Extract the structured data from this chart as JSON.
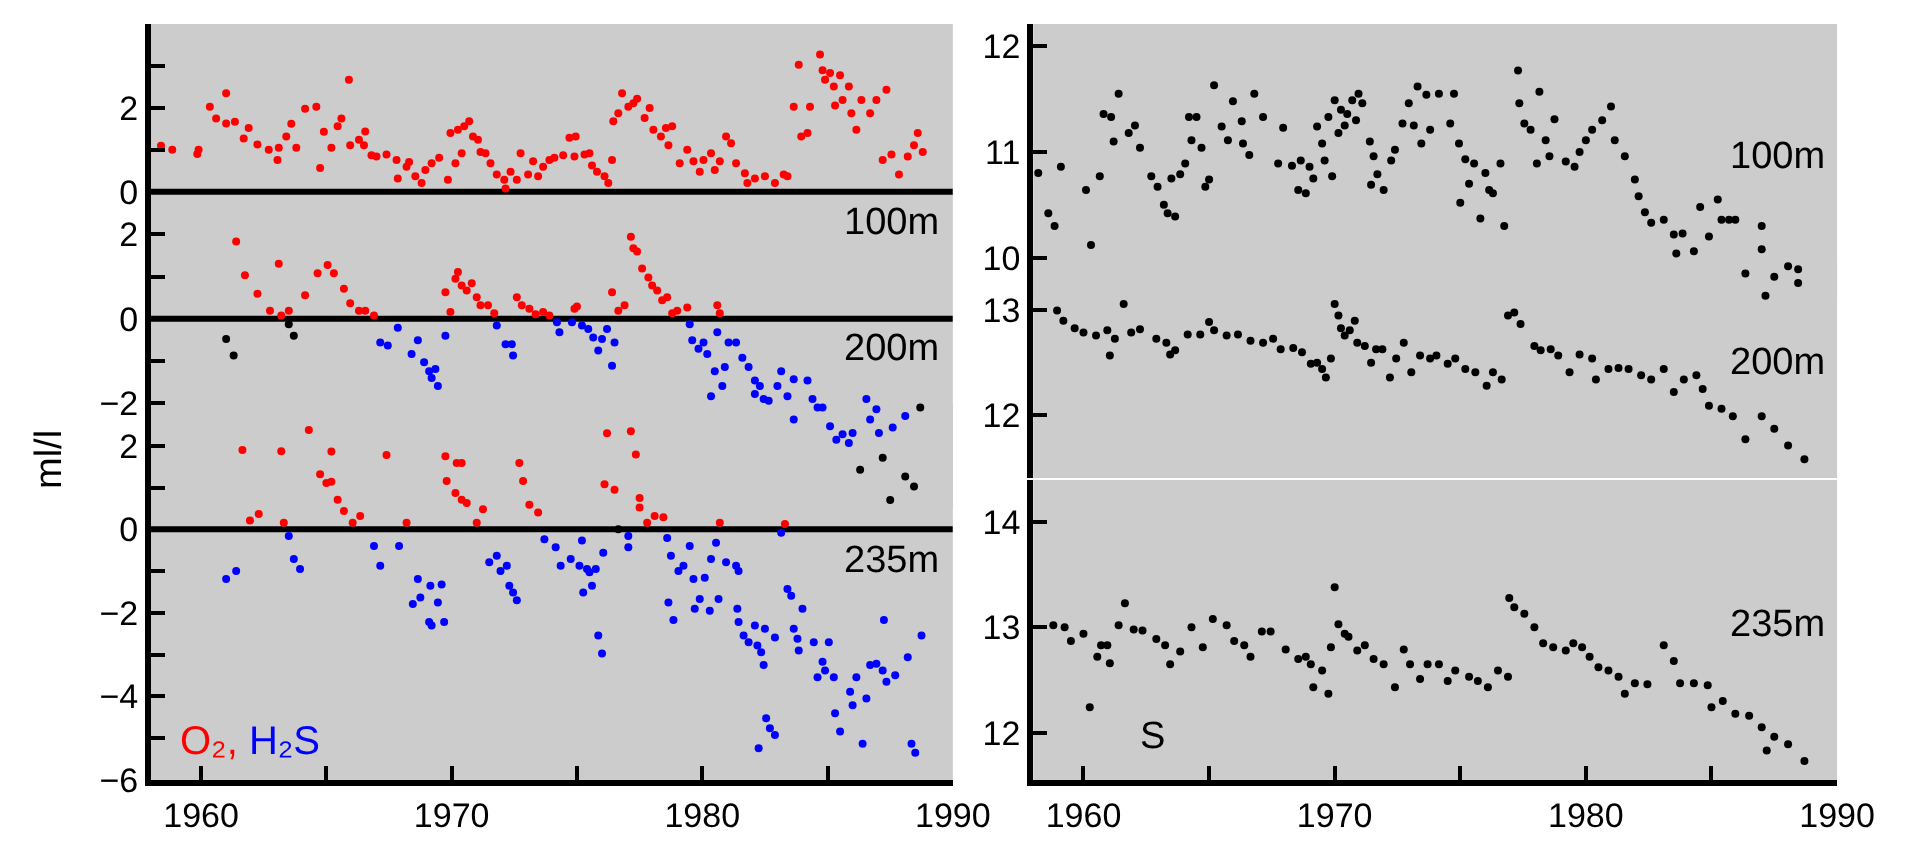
{
  "chart_data": [
    {
      "type": "scatter",
      "xlim": [
        1958,
        1990
      ],
      "ylim": [
        -0.1,
        4
      ],
      "yticks": [
        0,
        {
          "value": 1,
          "label": null
        },
        2,
        {
          "value": 3,
          "label": null
        },
        {
          "value": 4,
          "label": null
        }
      ],
      "tick_labels": "y",
      "marker": "circle",
      "ref_lines": [
        {
          "axis": "y",
          "value": 0,
          "color": "#000000"
        }
      ],
      "annotations": [
        "100m"
      ],
      "series": [
        {
          "color": "#ff0000",
          "x": [
            1958.4,
            1958.85,
            1959.85,
            1959.9,
            1960.35,
            1960.6,
            1961.0,
            1961.0,
            1961.35,
            1961.7,
            1961.9,
            1962.25,
            1962.7,
            1963.05,
            1963.1,
            1963.4,
            1963.6,
            1963.8,
            1964.15,
            1964.6,
            1964.75,
            1964.9,
            1965.2,
            1965.45,
            1965.6,
            1965.9,
            1965.95,
            1966.3,
            1966.55,
            1966.5,
            1966.8,
            1967.0,
            1967.4,
            1967.8,
            1967.85,
            1968.2,
            1968.3,
            1968.55,
            1968.8,
            1968.95,
            1969.2,
            1969.5,
            1969.85,
            1969.95,
            1970.15,
            1970.25,
            1970.4,
            1970.5,
            1970.7,
            1970.85,
            1971.05,
            1971.15,
            1971.35,
            1971.55,
            1971.8,
            1972.1,
            1972.15,
            1972.35,
            1972.6,
            1972.75,
            1973.05,
            1973.25,
            1973.45,
            1973.65,
            1973.9,
            1974.1,
            1974.45,
            1974.7,
            1974.95,
            1974.9,
            1975.3,
            1975.5,
            1975.6,
            1975.8,
            1976.1,
            1976.25,
            1976.4,
            1976.45,
            1976.65,
            1976.8,
            1977.05,
            1977.25,
            1977.4,
            1977.7,
            1977.9,
            1978.05,
            1978.35,
            1978.55,
            1978.65,
            1978.8,
            1979.1,
            1979.4,
            1979.65,
            1979.9,
            1980.05,
            1980.35,
            1980.5,
            1980.7,
            1980.95,
            1981.15,
            1981.35,
            1981.7,
            1981.8,
            1982.1,
            1982.5,
            1982.9,
            1983.25,
            1983.4,
            1983.65,
            1983.85,
            1983.95,
            1984.2,
            1984.3,
            1984.7,
            1984.8,
            1984.9,
            1985.1,
            1985.25,
            1985.3,
            1985.5,
            1985.6,
            1985.85,
            1985.95,
            1986.15,
            1986.35,
            1986.7,
            1986.95,
            1987.35,
            1987.2,
            1987.55,
            1987.85,
            1988.2,
            1988.45,
            1988.6,
            1988.8
          ],
          "values": [
            1.1,
            1.0,
            0.9,
            1.0,
            2.03,
            1.75,
            2.35,
            1.63,
            1.67,
            1.27,
            1.52,
            1.13,
            1.0,
            0.76,
            1.05,
            1.32,
            1.62,
            1.05,
            1.98,
            2.03,
            0.57,
            1.43,
            1.05,
            1.56,
            1.75,
            2.67,
            1.11,
            1.24,
            1.44,
            1.11,
            0.87,
            0.84,
            0.89,
            0.76,
            0.32,
            0.6,
            0.71,
            0.37,
            0.21,
            0.52,
            0.68,
            0.81,
            0.29,
            1.4,
            0.68,
            1.48,
            0.92,
            1.56,
            1.68,
            1.32,
            1.24,
            0.95,
            0.92,
            0.68,
            0.41,
            0.29,
            0.08,
            0.48,
            0.29,
            0.92,
            0.41,
            0.73,
            0.37,
            0.6,
            0.76,
            0.81,
            0.87,
            1.29,
            1.32,
            0.84,
            0.89,
            0.92,
            0.63,
            0.48,
            0.37,
            0.21,
            0.76,
            1.68,
            1.87,
            2.35,
            2.03,
            2.11,
            2.22,
            1.76,
            2.0,
            1.48,
            1.32,
            1.52,
            1.11,
            1.56,
            0.68,
            1.0,
            0.73,
            0.48,
            0.76,
            0.92,
            0.52,
            0.73,
            1.32,
            1.16,
            0.68,
            0.44,
            0.21,
            0.32,
            0.37,
            0.21,
            0.41,
            0.37,
            2.03,
            3.03,
            1.32,
            1.4,
            2.03,
            3.27,
            2.9,
            2.67,
            2.83,
            2.51,
            2.06,
            2.78,
            2.19,
            2.51,
            1.87,
            1.48,
            2.19,
            1.87,
            2.19,
            2.43,
            0.76,
            0.89,
            0.41,
            0.84,
            1.11,
            1.4,
            0.95
          ]
        }
      ]
    },
    {
      "type": "scatter",
      "xlim": [
        1958,
        1990
      ],
      "ylim": [
        -4.5,
        3
      ],
      "yticks": [
        {
          "value": -2,
          "label": "−2"
        },
        {
          "value": -1,
          "label": null
        },
        0,
        {
          "value": 1,
          "label": null
        },
        2
      ],
      "tick_labels": "y",
      "marker": "circle",
      "ylabel": "ml/l",
      "ref_lines": [
        {
          "axis": "y",
          "value": 0,
          "color": "#000000"
        }
      ],
      "annotations": [
        "200m"
      ],
      "series": [
        {
          "color": "#ff0000",
          "x": [
            1961.4,
            1961.75,
            1962.25,
            1962.75,
            1963.1,
            1963.2,
            1963.5,
            1964.15,
            1964.65,
            1965.05,
            1965.3,
            1965.7,
            1965.95,
            1966.3,
            1966.55,
            1966.9,
            1969.75,
            1969.95,
            1970.15,
            1970.25,
            1970.4,
            1970.6,
            1970.8,
            1971.0,
            1971.15,
            1971.45,
            1971.7,
            1972.6,
            1972.8,
            1973.1,
            1973.35,
            1973.65,
            1973.9,
            1974.9,
            1975.0,
            1976.4,
            1976.65,
            1976.9,
            1977.15,
            1977.25,
            1977.4,
            1977.6,
            1977.85,
            1978.0,
            1978.2,
            1978.4,
            1978.6,
            1978.8,
            1979.0,
            1979.4,
            1980.6,
            1980.7
          ],
          "values": [
            1.83,
            1.03,
            0.59,
            0.19,
            1.3,
            0.08,
            0.19,
            0.56,
            1.08,
            1.27,
            1.08,
            0.71,
            0.37,
            0.19,
            0.19,
            0.08,
            0.63,
            0.16,
            0.95,
            1.11,
            0.79,
            0.67,
            0.84,
            0.51,
            0.32,
            0.32,
            0.13,
            0.51,
            0.32,
            0.24,
            0.11,
            0.16,
            0.08,
            0.24,
            0.29,
            0.63,
            0.19,
            0.32,
            1.94,
            1.67,
            1.59,
            1.19,
            0.98,
            0.79,
            0.67,
            0.44,
            0.51,
            0.13,
            0.19,
            0.27,
            0.32,
            0.13
          ]
        },
        {
          "color": "#0000ff",
          "x": [
            1967.15,
            1967.45,
            1967.85,
            1968.4,
            1968.65,
            1968.9,
            1969.1,
            1969.2,
            1969.45,
            1969.35,
            1969.75,
            1971.8,
            1972.15,
            1972.45,
            1972.4,
            1974.2,
            1974.3,
            1974.8,
            1975.2,
            1975.45,
            1975.65,
            1975.85,
            1976.0,
            1976.2,
            1976.4,
            1976.5,
            1979.5,
            1979.6,
            1979.85,
            1980.05,
            1980.2,
            1980.35,
            1980.5,
            1980.6,
            1980.8,
            1980.9,
            1981.05,
            1981.35,
            1981.6,
            1981.85,
            1982.1,
            1982.1,
            1982.3,
            1982.45,
            1982.65,
            1983.0,
            1983.15,
            1983.4,
            1983.65,
            1983.65,
            1984.2,
            1984.4,
            1984.6,
            1984.8,
            1985.1,
            1985.35,
            1985.6,
            1985.85,
            1986.0,
            1986.55,
            1986.7,
            1986.95,
            1987.05,
            1987.6,
            1988.1
          ],
          "values": [
            -0.56,
            -0.63,
            -0.21,
            -0.83,
            -0.51,
            -1.03,
            -1.24,
            -1.4,
            -1.59,
            -1.19,
            -0.4,
            -0.16,
            -0.6,
            -0.87,
            -0.6,
            -0.08,
            -0.32,
            -0.08,
            -0.16,
            -0.24,
            -0.44,
            -0.75,
            -0.48,
            -0.24,
            -1.11,
            -0.56,
            -0.13,
            -0.51,
            -0.71,
            -0.56,
            -0.83,
            -1.83,
            -1.24,
            -0.32,
            -1.59,
            -1.14,
            -0.56,
            -0.56,
            -0.92,
            -1.14,
            -1.78,
            -1.46,
            -1.59,
            -1.9,
            -1.94,
            -1.59,
            -1.24,
            -1.83,
            -2.38,
            -1.43,
            -1.46,
            -1.9,
            -2.1,
            -2.1,
            -2.54,
            -2.86,
            -2.73,
            -2.94,
            -2.7,
            -1.9,
            -2.38,
            -2.14,
            -2.7,
            -2.57,
            -2.3
          ]
        },
        {
          "color": "#000000",
          "x": [
            1961.0,
            1961.3,
            1963.5,
            1963.7,
            1986.3,
            1987.2,
            1987.5,
            1988.1,
            1988.45,
            1988.7
          ],
          "values": [
            -0.48,
            -0.87,
            -0.13,
            -0.4,
            -3.57,
            -3.29,
            -4.29,
            -3.73,
            -3.97,
            -2.1
          ]
        }
      ]
    },
    {
      "type": "scatter",
      "xlim": [
        1958,
        1990
      ],
      "xticks": [
        1960,
        {
          "value": 1965,
          "label": null
        },
        1970,
        {
          "value": 1975,
          "label": null
        },
        1980,
        {
          "value": 1985,
          "label": null
        },
        1990
      ],
      "ylim": [
        -6,
        3
      ],
      "yticks": [
        {
          "value": -6,
          "label": "−6"
        },
        {
          "value": -5,
          "label": null
        },
        {
          "value": -4,
          "label": "−4"
        },
        {
          "value": -3,
          "label": null
        },
        {
          "value": -2,
          "label": "−2"
        },
        {
          "value": -1,
          "label": null
        },
        0,
        {
          "value": 1,
          "label": null
        },
        2
      ],
      "marker": "circle",
      "legend": "bottom left",
      "ref_lines": [
        {
          "axis": "y",
          "value": 0,
          "color": "#000000"
        }
      ],
      "annotations": [
        "235m"
      ],
      "series": [
        {
          "name": "O₂,",
          "color": "#ff0000",
          "x": [
            1961.65,
            1961.95,
            1962.3,
            1963.2,
            1963.3,
            1964.3,
            1964.75,
            1965.0,
            1965.2,
            1965.2,
            1965.45,
            1965.7,
            1966.05,
            1966.35,
            1967.4,
            1968.2,
            1969.75,
            1969.8,
            1970.15,
            1970.2,
            1970.4,
            1970.4,
            1970.6,
            1971.0,
            1971.25,
            1972.7,
            1972.85,
            1973.1,
            1973.45,
            1976.2,
            1976.1,
            1976.5,
            1977.15,
            1977.35,
            1977.5,
            1977.5,
            1977.8,
            1978.1,
            1978.45,
            1980.7,
            1983.3
          ],
          "values": [
            1.9,
            0.21,
            0.37,
            1.87,
            0.16,
            2.38,
            1.32,
            1.11,
            1.86,
            1.14,
            0.71,
            0.44,
            0.16,
            0.32,
            1.78,
            0.16,
            1.75,
            1.16,
            0.87,
            1.59,
            1.59,
            0.71,
            0.63,
            0.16,
            0.48,
            1.59,
            1.16,
            0.59,
            0.4,
            2.3,
            1.08,
            0.95,
            2.35,
            1.79,
            0.75,
            0.52,
            0.16,
            0.32,
            0.29,
            0.16,
            0.13
          ]
        },
        {
          "name": "H₂S",
          "color": "#0000ff",
          "x": [
            1961.0,
            1961.4,
            1963.5,
            1963.7,
            1963.95,
            1966.9,
            1967.15,
            1967.9,
            1968.45,
            1968.65,
            1968.75,
            1969.1,
            1969.2,
            1969.15,
            1969.45,
            1969.6,
            1969.7,
            1971.5,
            1971.8,
            1971.95,
            1972.2,
            1972.3,
            1972.45,
            1972.6,
            1973.7,
            1974.15,
            1974.35,
            1974.75,
            1975.1,
            1975.2,
            1975.25,
            1975.4,
            1975.5,
            1975.6,
            1975.75,
            1975.85,
            1976.0,
            1976.05,
            1977.05,
            1977.05,
            1978.6,
            1978.75,
            1978.65,
            1978.85,
            1979.05,
            1979.25,
            1979.5,
            1979.65,
            1979.7,
            1979.9,
            1980.1,
            1980.3,
            1980.35,
            1980.55,
            1980.65,
            1980.95,
            1981.35,
            1981.4,
            1981.45,
            1981.45,
            1981.65,
            1981.85,
            1982.1,
            1982.2,
            1982.25,
            1982.35,
            1982.45,
            1982.5,
            1982.55,
            1982.7,
            1982.9,
            1982.9,
            1983.15,
            1983.4,
            1983.55,
            1983.65,
            1983.8,
            1983.85,
            1984.0,
            1984.45,
            1984.6,
            1984.8,
            1984.9,
            1985.05,
            1985.25,
            1985.3,
            1985.5,
            1985.9,
            1986.0,
            1986.15,
            1986.4,
            1986.55,
            1986.7,
            1986.95,
            1987.2,
            1987.25,
            1987.35,
            1987.7,
            1988.2,
            1988.35,
            1988.5,
            1988.75
          ],
          "values": [
            -1.19,
            -1.0,
            -0.16,
            -0.71,
            -0.95,
            -0.4,
            -0.87,
            -0.4,
            -1.79,
            -1.19,
            -1.63,
            -2.22,
            -2.3,
            -1.35,
            -1.75,
            -1.32,
            -2.22,
            -0.79,
            -0.63,
            -1.0,
            -0.87,
            -1.35,
            -1.51,
            -1.7,
            -0.24,
            -0.43,
            -0.87,
            -0.71,
            -0.87,
            -0.27,
            -1.51,
            -0.95,
            -1.03,
            -1.35,
            -0.95,
            -2.54,
            -2.97,
            -0.56,
            -0.16,
            -0.43,
            -0.21,
            -0.63,
            -1.75,
            -2.17,
            -1.0,
            -0.87,
            -0.4,
            -1.19,
            -1.9,
            -1.67,
            -1.16,
            -1.95,
            -0.71,
            -0.32,
            -1.67,
            -0.79,
            -0.87,
            -1.9,
            -1.0,
            -2.22,
            -2.54,
            -2.7,
            -2.3,
            -2.78,
            -5.24,
            -2.94,
            -3.25,
            -2.38,
            -4.52,
            -4.76,
            -4.92,
            -2.59,
            -0.08,
            -1.43,
            -1.59,
            -2.38,
            -2.62,
            -2.9,
            -1.9,
            -2.7,
            -3.54,
            -3.17,
            -3.38,
            -2.7,
            -3.54,
            -4.4,
            -4.84,
            -3.89,
            -4.21,
            -3.54,
            -5.13,
            -4.05,
            -3.25,
            -3.22,
            -3.38,
            -2.17,
            -3.65,
            -3.49,
            -3.06,
            -5.13,
            -5.35,
            -2.54
          ]
        },
        {
          "color": "#000000",
          "x": [
            1976.65
          ],
          "values": [
            0.0
          ]
        }
      ]
    },
    {
      "type": "scatter",
      "xlim": [
        1958,
        1990
      ],
      "ylim": [
        9.6,
        12.21
      ],
      "yticks": [
        10,
        11,
        12
      ],
      "tick_labels": "y",
      "marker": "circle",
      "annotations": [
        "100m"
      ],
      "series": [
        {
          "color": "#000000",
          "x": [
            1958.2,
            1958.6,
            1958.85,
            1959.1,
            1960.1,
            1960.3,
            1960.65,
            1960.8,
            1961.1,
            1961.2,
            1961.4,
            1961.8,
            1962.05,
            1962.25,
            1962.7,
            1962.95,
            1963.2,
            1963.35,
            1963.65,
            1963.5,
            1963.85,
            1964.05,
            1964.2,
            1964.3,
            1964.5,
            1964.7,
            1964.85,
            1965.0,
            1965.2,
            1965.5,
            1965.75,
            1965.95,
            1966.3,
            1966.35,
            1966.6,
            1966.8,
            1967.15,
            1967.75,
            1967.95,
            1968.3,
            1968.55,
            1968.65,
            1968.85,
            1969.0,
            1969.15,
            1969.3,
            1969.5,
            1969.6,
            1969.75,
            1969.9,
            1970.0,
            1970.15,
            1970.25,
            1970.4,
            1970.5,
            1970.7,
            1970.85,
            1970.95,
            1971.1,
            1971.4,
            1971.55,
            1971.45,
            1971.7,
            1971.95,
            1972.25,
            1972.4,
            1972.7,
            1972.95,
            1973.15,
            1973.3,
            1973.45,
            1973.65,
            1973.8,
            1974.15,
            1974.6,
            1974.75,
            1974.95,
            1975.0,
            1975.2,
            1975.35,
            1975.55,
            1975.8,
            1976.0,
            1976.15,
            1976.3,
            1976.6,
            1976.75,
            1977.3,
            1977.35,
            1977.55,
            1977.8,
            1978.15,
            1978.05,
            1978.4,
            1978.55,
            1978.75,
            1979.2,
            1979.55,
            1979.75,
            1980.0,
            1980.25,
            1980.65,
            1981.0,
            1981.15,
            1981.55,
            1981.95,
            1982.1,
            1982.35,
            1982.6,
            1983.1,
            1983.5,
            1983.85,
            1984.3,
            1984.55,
            1984.9,
            1985.25,
            1985.4,
            1985.7,
            1985.95,
            1987.0,
            1987.0,
            1983.6,
            1986.35,
            1987.15,
            1987.5,
            1988.05,
            1988.45,
            1988.45
          ],
          "values": [
            10.8,
            10.42,
            10.3,
            10.86,
            10.64,
            10.12,
            10.77,
            11.36,
            11.33,
            11.1,
            11.55,
            11.18,
            11.25,
            11.04,
            10.77,
            10.67,
            10.5,
            10.42,
            10.39,
            10.75,
            10.79,
            10.89,
            11.33,
            11.11,
            11.33,
            11.04,
            10.67,
            10.74,
            11.63,
            11.24,
            11.11,
            11.48,
            11.29,
            11.08,
            10.97,
            11.55,
            11.33,
            10.89,
            11.23,
            10.87,
            10.64,
            10.92,
            10.61,
            10.86,
            10.75,
            11.24,
            11.08,
            10.92,
            11.33,
            10.77,
            11.49,
            11.18,
            11.4,
            11.25,
            11.36,
            11.49,
            11.3,
            11.55,
            11.46,
            11.1,
            10.96,
            10.69,
            10.79,
            10.64,
            10.92,
            11.02,
            11.27,
            11.46,
            11.25,
            11.62,
            11.08,
            11.54,
            11.21,
            11.55,
            11.27,
            11.55,
            11.08,
            10.52,
            10.93,
            10.7,
            10.89,
            10.37,
            10.8,
            10.64,
            10.61,
            10.89,
            10.3,
            11.77,
            11.46,
            11.27,
            11.21,
            11.57,
            10.89,
            11.11,
            10.96,
            11.31,
            10.91,
            10.86,
            11.0,
            11.11,
            11.21,
            11.3,
            11.43,
            11.11,
            10.96,
            10.74,
            10.58,
            10.43,
            10.33,
            10.36,
            10.22,
            10.23,
            10.06,
            10.48,
            10.2,
            10.55,
            10.36,
            10.36,
            10.36,
            10.3,
            10.08,
            10.04,
            9.85,
            9.64,
            9.82,
            9.92,
            9.76,
            9.89
          ]
        }
      ]
    },
    {
      "type": "scatter",
      "xlim": [
        1958,
        1990
      ],
      "ylim": [
        11.4,
        13.5
      ],
      "yticks": [
        12,
        13
      ],
      "tick_labels": "y",
      "marker": "circle",
      "annotations": [
        "200m"
      ],
      "series": [
        {
          "color": "#000000",
          "x": [
            1958.95,
            1959.2,
            1959.65,
            1960.0,
            1960.5,
            1960.95,
            1961.05,
            1961.25,
            1961.6,
            1961.9,
            1962.25,
            1962.9,
            1963.3,
            1963.45,
            1963.65,
            1964.15,
            1964.65,
            1965.0,
            1965.2,
            1965.7,
            1966.15,
            1966.65,
            1967.15,
            1967.55,
            1967.85,
            1968.35,
            1968.7,
            1969.05,
            1969.3,
            1969.5,
            1969.65,
            1969.85,
            1970.0,
            1970.15,
            1970.25,
            1970.4,
            1970.6,
            1970.8,
            1970.9,
            1971.2,
            1971.45,
            1971.65,
            1971.9,
            1972.2,
            1972.45,
            1972.75,
            1973.05,
            1973.4,
            1973.8,
            1974.05,
            1974.5,
            1974.8,
            1975.2,
            1975.6,
            1976.05,
            1976.3,
            1976.65,
            1976.9,
            1977.15,
            1977.4,
            1977.95,
            1978.2,
            1978.6,
            1978.9,
            1979.35,
            1979.75,
            1980.25,
            1980.4,
            1980.9,
            1981.3,
            1981.7,
            1982.2,
            1982.6,
            1983.1,
            1983.5,
            1983.9,
            1984.4,
            1984.65,
            1984.9,
            1985.4,
            1985.85,
            1986.35,
            1987.0,
            1987.5,
            1988.05,
            1988.7
          ],
          "values": [
            13.0,
            12.9,
            12.83,
            12.79,
            12.76,
            12.81,
            12.57,
            12.73,
            13.06,
            12.79,
            12.82,
            12.73,
            12.69,
            12.58,
            12.62,
            12.77,
            12.77,
            12.89,
            12.81,
            12.76,
            12.77,
            12.71,
            12.69,
            12.73,
            12.63,
            12.64,
            12.6,
            12.49,
            12.5,
            12.44,
            12.36,
            12.54,
            13.06,
            12.95,
            12.83,
            12.76,
            12.81,
            12.9,
            12.69,
            12.66,
            12.5,
            12.63,
            12.63,
            12.36,
            12.54,
            12.69,
            12.41,
            12.57,
            12.54,
            12.57,
            12.49,
            12.54,
            12.44,
            12.41,
            12.28,
            12.41,
            12.34,
            12.95,
            12.98,
            12.87,
            12.66,
            12.62,
            12.63,
            12.57,
            12.41,
            12.58,
            12.54,
            12.34,
            12.44,
            12.45,
            12.44,
            12.38,
            12.34,
            12.44,
            12.22,
            12.34,
            12.38,
            12.25,
            12.09,
            12.06,
            11.99,
            11.77,
            11.99,
            11.87,
            11.71,
            11.58
          ]
        }
      ]
    },
    {
      "type": "scatter",
      "xlim": [
        1958,
        1990
      ],
      "xticks": [
        1960,
        {
          "value": 1965,
          "label": null
        },
        1970,
        {
          "value": 1975,
          "label": null
        },
        1980,
        {
          "value": 1985,
          "label": null
        },
        1990
      ],
      "ylim": [
        11.55,
        14.4
      ],
      "yticks": [
        12,
        13,
        14
      ],
      "marker": "circle",
      "annotations": [
        "235m",
        "S"
      ],
      "series": [
        {
          "color": "#000000",
          "x": [
            1958.8,
            1959.25,
            1959.5,
            1960.0,
            1960.25,
            1960.55,
            1960.7,
            1960.95,
            1961.05,
            1961.4,
            1961.65,
            1962.0,
            1962.35,
            1962.9,
            1963.25,
            1963.45,
            1963.85,
            1964.3,
            1964.75,
            1965.15,
            1965.7,
            1966.0,
            1966.4,
            1966.65,
            1967.1,
            1967.45,
            1968.05,
            1968.55,
            1968.85,
            1969.05,
            1969.15,
            1969.5,
            1969.75,
            1969.85,
            1970.0,
            1970.15,
            1970.4,
            1970.55,
            1970.9,
            1971.2,
            1971.55,
            1971.95,
            1972.4,
            1972.75,
            1973.0,
            1973.4,
            1973.7,
            1974.15,
            1974.5,
            1974.8,
            1975.35,
            1975.7,
            1976.1,
            1976.5,
            1976.9,
            1976.95,
            1977.15,
            1977.55,
            1977.95,
            1978.3,
            1978.7,
            1979.2,
            1979.5,
            1979.85,
            1980.15,
            1980.5,
            1980.9,
            1981.3,
            1981.55,
            1981.95,
            1982.45,
            1983.1,
            1983.5,
            1983.75,
            1984.3,
            1984.85,
            1985.0,
            1985.45,
            1985.95,
            1986.5,
            1987.0,
            1987.2,
            1987.5,
            1988.05,
            1988.7
          ],
          "values": [
            13.02,
            13.0,
            12.87,
            12.94,
            12.24,
            12.72,
            12.83,
            12.83,
            12.66,
            13.02,
            13.23,
            12.98,
            12.97,
            12.89,
            12.83,
            12.65,
            12.77,
            13.0,
            12.81,
            13.08,
            13.02,
            12.87,
            12.83,
            12.72,
            12.96,
            12.96,
            12.79,
            12.7,
            12.72,
            12.65,
            12.43,
            12.59,
            12.37,
            12.81,
            13.38,
            13.03,
            12.94,
            12.91,
            12.78,
            12.83,
            12.7,
            12.65,
            12.43,
            12.79,
            12.65,
            12.51,
            12.65,
            12.65,
            12.49,
            12.59,
            12.53,
            12.49,
            12.43,
            12.59,
            12.53,
            13.28,
            13.19,
            13.13,
            13.0,
            12.85,
            12.81,
            12.78,
            12.85,
            12.81,
            12.72,
            12.62,
            12.59,
            12.53,
            12.37,
            12.47,
            12.46,
            12.83,
            12.68,
            12.47,
            12.47,
            12.45,
            12.24,
            12.3,
            12.18,
            12.16,
            12.05,
            11.83,
            11.96,
            11.89,
            11.73
          ]
        }
      ]
    }
  ]
}
